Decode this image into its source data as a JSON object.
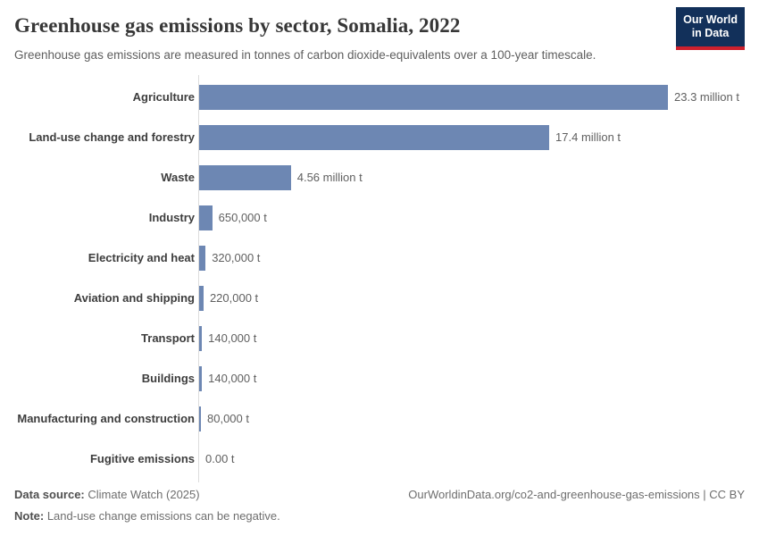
{
  "header": {
    "title": "Greenhouse gas emissions by sector, Somalia, 2022",
    "subtitle": "Greenhouse gas emissions are measured in tonnes of carbon dioxide-equivalents over a 100-year timescale.",
    "logo_line1": "Our World",
    "logo_line2": "in Data"
  },
  "chart_data": {
    "type": "bar",
    "orientation": "horizontal",
    "title": "Greenhouse gas emissions by sector, Somalia, 2022",
    "unit": "tonnes of carbon dioxide-equivalents",
    "xlim": [
      0,
      23.3
    ],
    "grid": false,
    "legend": "none",
    "bar_color": "#6d87b3",
    "categories": [
      "Agriculture",
      "Land-use change and forestry",
      "Waste",
      "Industry",
      "Electricity and heat",
      "Aviation and shipping",
      "Transport",
      "Buildings",
      "Manufacturing and construction",
      "Fugitive emissions"
    ],
    "values_million_t": [
      23.3,
      17.4,
      4.56,
      0.65,
      0.32,
      0.22,
      0.14,
      0.14,
      0.08,
      0
    ],
    "value_labels": [
      "23.3 million t",
      "17.4 million t",
      "4.56 million t",
      "650,000 t",
      "320,000 t",
      "220,000 t",
      "140,000 t",
      "140,000 t",
      "80,000 t",
      "0.00 t"
    ]
  },
  "footer": {
    "source_label": "Data source:",
    "source_value": " Climate Watch (2025)",
    "note_label": "Note:",
    "note_value": " Land-use change emissions can be negative.",
    "citation": "OurWorldinData.org/co2-and-greenhouse-gas-emissions | CC BY"
  },
  "colors": {
    "bar": "#6d87b3",
    "axis_line": "#dcdcdc",
    "logo_background": "#12305a",
    "logo_accent": "#cd202d"
  }
}
